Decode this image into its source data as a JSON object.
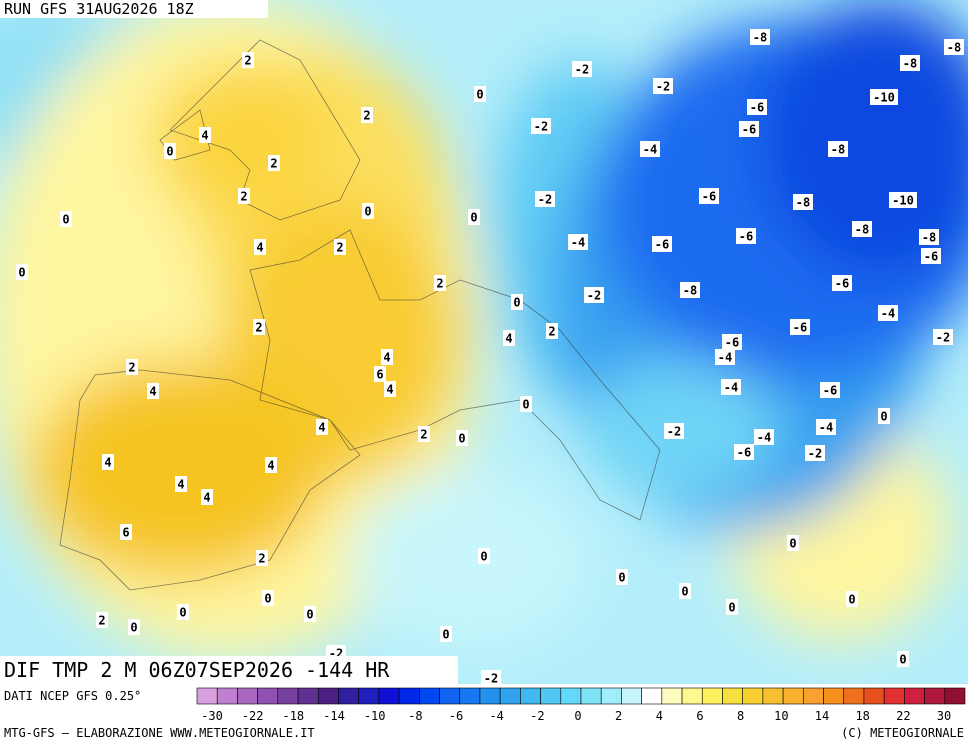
{
  "header": {
    "run": "RUN GFS 31AUG2026 18Z"
  },
  "map": {
    "labels": [
      "2",
      "4",
      "0",
      "2",
      "2",
      "2",
      "0",
      "0",
      "0",
      "4",
      "2",
      "0",
      "2",
      "0",
      "2",
      "4",
      "2",
      "4",
      "6",
      "4",
      "2",
      "4",
      "4",
      "2",
      "0",
      "0",
      "4",
      "4",
      "4",
      "4",
      "6",
      "2",
      "0",
      "0",
      "0",
      "0",
      "0",
      "0",
      "0",
      "2",
      "0",
      "0",
      "-2",
      "-2",
      "0",
      "0",
      "0",
      "0",
      "0",
      "-2",
      "-2",
      "-2",
      "-2",
      "-4",
      "-8",
      "-8",
      "-8",
      "-10",
      "-6",
      "-6",
      "-8",
      "-6",
      "-8",
      "-10",
      "-8",
      "-8",
      "-6",
      "-4",
      "-6",
      "-6",
      "-6",
      "-2",
      "-8",
      "-4",
      "-6",
      "-2",
      "-6",
      "-4",
      "-4",
      "-6",
      "-2",
      "-4",
      "-4",
      "-6",
      "-2"
    ]
  },
  "footer": {
    "title": "DIF TMP 2 M 06Z07SEP2026 -144 HR",
    "source": "DATI NCEP GFS 0.25°",
    "credit": "MTG-GFS — ELABORAZIONE WWW.METEOGIORNALE.IT",
    "copyright": "(C) METEOGIORNALE"
  },
  "colorbar": {
    "ticks": [
      -30,
      -22,
      -18,
      -14,
      -10,
      -8,
      -6,
      -4,
      -2,
      0,
      2,
      4,
      6,
      8,
      10,
      14,
      18,
      22,
      30
    ],
    "colors": [
      "#d9a0e0",
      "#c080d0",
      "#a868c0",
      "#9050b0",
      "#7840a0",
      "#603090",
      "#4a2080",
      "#3020a0",
      "#2020c0",
      "#1010d8",
      "#0028e8",
      "#0048f0",
      "#1064f0",
      "#1878f0",
      "#2490f0",
      "#30a4f0",
      "#40b8f0",
      "#50c8f4",
      "#64d8f8",
      "#80e4f8",
      "#a0eefa",
      "#c8f6fc",
      "#ffffff",
      "#fffcc0",
      "#fff890",
      "#fff060",
      "#f8e040",
      "#f8d030",
      "#f8c030",
      "#f8b030",
      "#f8a030",
      "#f89020",
      "#f07020",
      "#e85020",
      "#e03030",
      "#d02040",
      "#b01840",
      "#901030"
    ]
  }
}
